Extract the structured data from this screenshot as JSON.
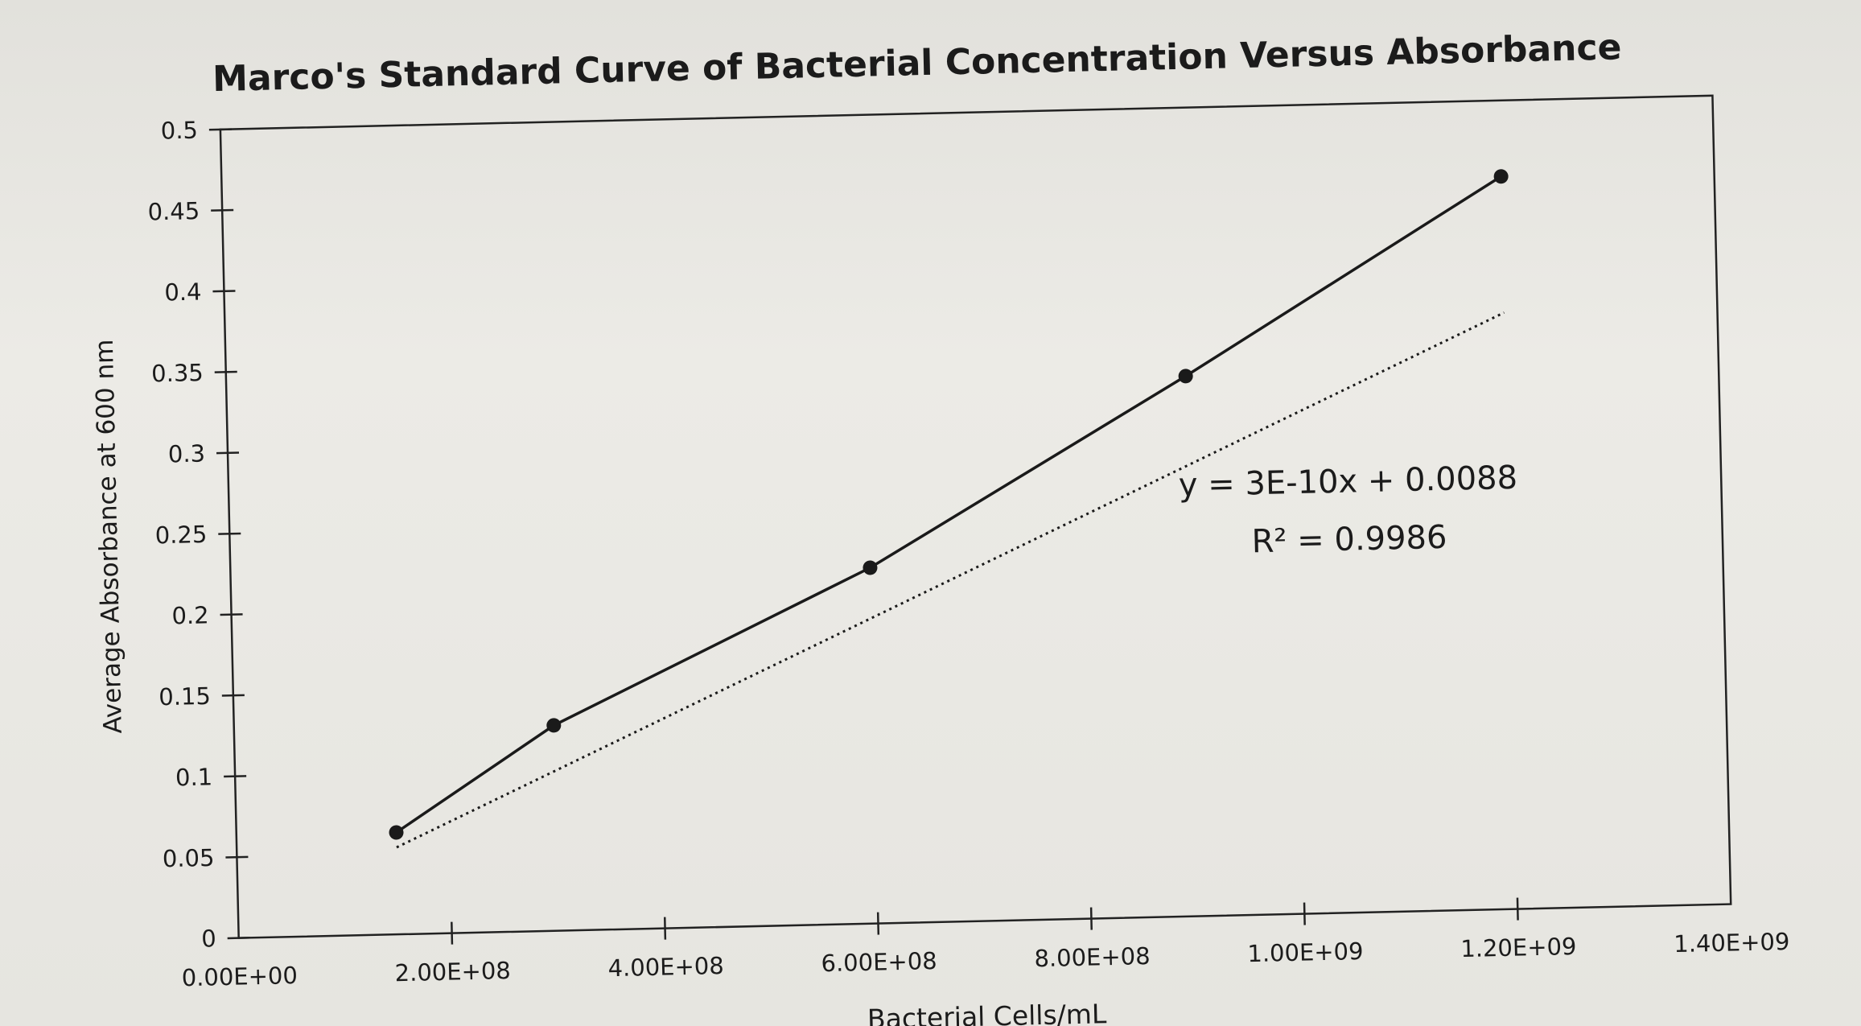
{
  "chart_data": {
    "type": "scatter",
    "title": "Marco's Standard Curve of Bacterial Concentration Versus Absorbance",
    "xlabel": "Bacterial Cells/mL",
    "ylabel": "Average Absorbance at 600 nm",
    "xlim": [
      0,
      1400000000
    ],
    "ylim": [
      0,
      0.5
    ],
    "x_ticks": [
      0,
      200000000,
      400000000,
      600000000,
      800000000,
      1000000000,
      1200000000,
      1400000000
    ],
    "x_tick_labels": [
      "0.00E+00",
      "2.00E+08",
      "4.00E+08",
      "6.00E+08",
      "8.00E+08",
      "1.00E+09",
      "1.20E+09",
      "1.40E+09"
    ],
    "y_ticks": [
      0,
      0.05,
      0.1,
      0.15,
      0.2,
      0.25,
      0.3,
      0.35,
      0.4,
      0.45,
      0.5
    ],
    "y_tick_labels": [
      "0",
      "0.05",
      "0.1",
      "0.15",
      "0.2",
      "0.25",
      "0.3",
      "0.35",
      "0.4",
      "0.45",
      "0.5"
    ],
    "grid": false,
    "legend": "none",
    "series": [
      {
        "x": [
          150000000,
          300000000,
          600000000,
          900000000,
          1200000000
        ],
        "y": [
          0.063,
          0.127,
          0.22,
          0.334,
          0.453
        ],
        "color": "#1a1a1a",
        "style": "line-with-markers"
      }
    ],
    "trendline": {
      "type": "linear",
      "slope": 3e-10,
      "intercept": 0.0088,
      "style": "dotted",
      "color": "#1a1a1a"
    },
    "annotations": [
      "y = 3E-10x + 0.0088",
      "R² = 0.9986"
    ]
  }
}
